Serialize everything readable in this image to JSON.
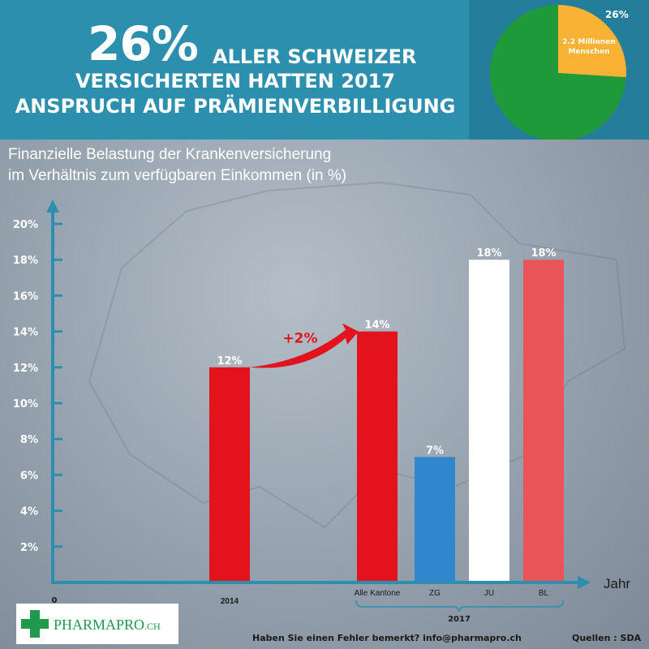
{
  "headline": {
    "big": "26%",
    "line1": "ALLER SCHWEIZER",
    "line2": "VERSICHERTEN HATTEN 2017",
    "line3": "ANSPRUCH AUF PRÄMIENVERBILLIGUNG"
  },
  "pie": {
    "percent_label": "26%",
    "slice_label_1": "2.2 Millionen",
    "slice_label_2": "Menschen",
    "slices": [
      {
        "value": 26,
        "color": "#f9b233"
      },
      {
        "value": 74,
        "color": "#1f9a3a"
      }
    ]
  },
  "subtitle": {
    "line1": "Finanzielle Belastung der Krankenversicherung",
    "line2": "im Verhältnis zum verfügbaren Einkommen (in %)"
  },
  "chart_data": {
    "type": "bar",
    "title": "Finanzielle Belastung der Krankenversicherung im Verhältnis zum verfügbaren Einkommen (in %)",
    "xlabel": "Jahr",
    "ylabel": "",
    "ylim": [
      0,
      20
    ],
    "ytick_values": [
      2,
      4,
      6,
      8,
      10,
      12,
      14,
      16,
      18,
      20
    ],
    "ytick_labels": [
      "2%",
      "4%",
      "6%",
      "8%",
      "10%",
      "12%",
      "14%",
      "16%",
      "18%",
      "20%"
    ],
    "origin_label": "0",
    "categories": [
      "2014",
      "Alle Kantone",
      "ZG",
      "JU",
      "BL"
    ],
    "values": [
      12,
      14,
      7,
      18,
      18
    ],
    "data_labels": [
      "12%",
      "14%",
      "7%",
      "18%",
      "18%"
    ],
    "colors": [
      "#e3131e",
      "#e3131e",
      "#2f88cc",
      "#ffffff",
      "#e8545a"
    ],
    "group_label": "2017",
    "annotation": "+2%"
  },
  "footer": {
    "note": "Haben Sie einen Fehler bemerkt? info@pharmapro.ch",
    "source": "Quellen : SDA"
  },
  "logo": {
    "text": "PHARMAPRO",
    "suffix": ".CH"
  }
}
